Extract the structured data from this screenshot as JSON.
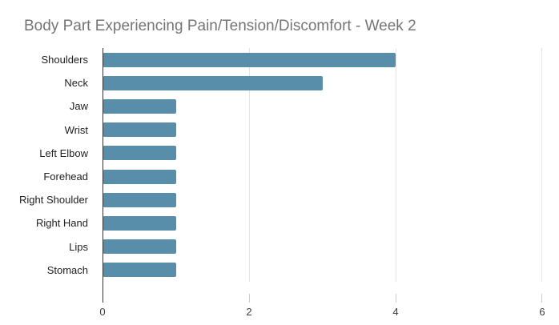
{
  "title": "Body Part Experiencing Pain/Tension/Discomfort - Week 2",
  "colors": {
    "background": "#ffffff",
    "bar": "#588eaa",
    "title_text": "#757575",
    "category_label_text": "#212121",
    "tick_label_text": "#3c3c3c",
    "gridline": "#e4e4e4",
    "axis_line": "#333333",
    "tick_mark": "#cccccc"
  },
  "chart_data": {
    "type": "bar",
    "orientation": "horizontal",
    "title": "Body Part Experiencing Pain/Tension/Discomfort - Week 2",
    "categories": [
      "Shoulders",
      "Neck",
      "Jaw",
      "Wrist",
      "Left Elbow",
      "Forehead",
      "Right Shoulder",
      "Right Hand",
      "Lips",
      "Stomach"
    ],
    "values": [
      4,
      3,
      1,
      1,
      1,
      1,
      1,
      1,
      1,
      1
    ],
    "xlabel": "",
    "ylabel": "",
    "xlim": [
      0,
      6
    ],
    "xticks": [
      "0",
      "2",
      "4",
      "6"
    ],
    "xtick_values": [
      0,
      2,
      4,
      6
    ],
    "grid": true,
    "legend": "none"
  }
}
